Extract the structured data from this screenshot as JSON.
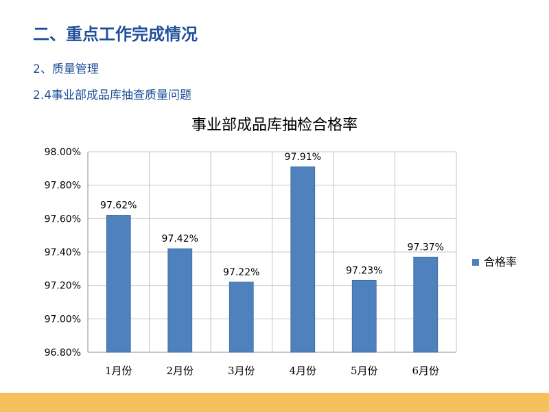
{
  "slide": {
    "heading": "二、重点工作完成情况",
    "subheading": "2、质量管理",
    "subsubheading": "2.4事业部成品库抽查质量问题"
  },
  "colors": {
    "heading": "#1f4e9a",
    "bar": "#4f81bd",
    "footer": "#f5c15a"
  },
  "chart_data": {
    "type": "bar",
    "title": "事业部成品库抽检合格率",
    "categories": [
      "1月份",
      "2月份",
      "3月份",
      "4月份",
      "5月份",
      "6月份"
    ],
    "series": [
      {
        "name": "合格率",
        "values": [
          97.62,
          97.42,
          97.22,
          97.91,
          97.23,
          97.37
        ],
        "labels": [
          "97.62%",
          "97.42%",
          "97.22%",
          "97.91%",
          "97.23%",
          "97.37%"
        ]
      }
    ],
    "ylim": [
      96.8,
      98.0
    ],
    "yticks": [
      "98.00%",
      "97.80%",
      "97.60%",
      "97.40%",
      "97.20%",
      "97.00%",
      "96.80%"
    ],
    "grid": true,
    "legend": "right"
  }
}
